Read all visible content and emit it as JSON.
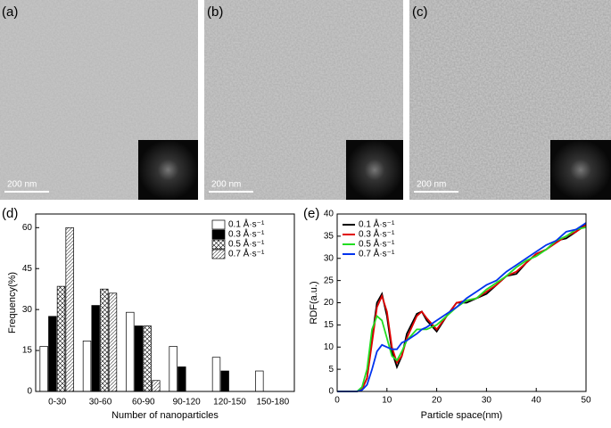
{
  "panels": [
    {
      "label": "(a)",
      "scale_bar": "200 nm"
    },
    {
      "label": "(b)",
      "scale_bar": "200 nm"
    },
    {
      "label": "(c)",
      "scale_bar": "200 nm"
    }
  ],
  "chart_data": [
    {
      "type": "bar",
      "panel_label": "(d)",
      "xlabel": "Number of nanoparticles",
      "ylabel": "Frequency(%)",
      "categories": [
        "0-30",
        "30-60",
        "60-90",
        "90-120",
        "120-150",
        "150-180"
      ],
      "series": [
        {
          "name": "0.1 Å·s⁻¹",
          "color": "#ffffff",
          "pattern": "none",
          "values": [
            16.5,
            18.5,
            29,
            16.5,
            12.5,
            7.5
          ]
        },
        {
          "name": "0.3 Å·s⁻¹",
          "color": "#000000",
          "pattern": "none",
          "values": [
            27.5,
            31.5,
            24,
            9,
            7.5,
            null
          ]
        },
        {
          "name": "0.5 Å·s⁻¹",
          "color": "#ffffff",
          "pattern": "crosshatch",
          "values": [
            38.5,
            37.5,
            24,
            null,
            null,
            null
          ]
        },
        {
          "name": "0.7 Å·s⁻¹",
          "color": "#ffffff",
          "pattern": "hatch",
          "values": [
            60,
            36,
            4,
            null,
            null,
            null
          ]
        }
      ],
      "ylim": [
        0,
        65
      ],
      "yticks": [
        0,
        15,
        30,
        45,
        60
      ],
      "legend": "top-right"
    },
    {
      "type": "line",
      "panel_label": "(e)",
      "xlabel": "Particle space(nm)",
      "ylabel": "RDF(a.u.)",
      "x": [
        0,
        2,
        4,
        5,
        6,
        7,
        8,
        9,
        10,
        11,
        12,
        13,
        14,
        16,
        17,
        18,
        20,
        22,
        24,
        26,
        28,
        30,
        32,
        34,
        36,
        38,
        40,
        42,
        44,
        46,
        48,
        50
      ],
      "series": [
        {
          "name": "0.1 Å·s⁻¹",
          "color": "#000000",
          "values": [
            0,
            0,
            0,
            0.5,
            3,
            12,
            20,
            22,
            17,
            9,
            5.5,
            8,
            13,
            17.5,
            18,
            16,
            13.5,
            17,
            20,
            20,
            21,
            22,
            24,
            26,
            26.5,
            29,
            31,
            32,
            34,
            34.5,
            36,
            38
          ]
        },
        {
          "name": "0.3 Å·s⁻¹",
          "color": "#e00000",
          "values": [
            0,
            0,
            0,
            0.5,
            3,
            11,
            19,
            21.5,
            18,
            10,
            6.5,
            8,
            12,
            17,
            18,
            16.5,
            14,
            17,
            20,
            20.5,
            21,
            22.5,
            24,
            26,
            27,
            29,
            31,
            32,
            33.5,
            35,
            36,
            37.5
          ]
        },
        {
          "name": "0.5 Å·s⁻¹",
          "color": "#22dd22",
          "values": [
            0,
            0,
            0,
            1,
            5,
            14,
            17,
            16,
            12,
            8,
            7,
            9,
            11.5,
            14,
            14,
            14,
            15,
            17,
            19,
            20.5,
            21,
            23,
            24.5,
            26,
            28,
            29.5,
            30.5,
            32,
            34,
            35,
            36.5,
            37
          ]
        },
        {
          "name": "0.7 Å·s⁻¹",
          "color": "#0033ee",
          "values": [
            0,
            0,
            0,
            0.3,
            1.5,
            5,
            9,
            10.5,
            10,
            9.5,
            9.5,
            11,
            11.5,
            13,
            14,
            14.5,
            16,
            17.5,
            19,
            21,
            22.5,
            24,
            25,
            27,
            28.5,
            30,
            31.5,
            33,
            34,
            36,
            36.5,
            38
          ]
        }
      ],
      "xlim": [
        0,
        50
      ],
      "xticks": [
        0,
        10,
        20,
        30,
        40,
        50
      ],
      "ylim": [
        0,
        40
      ],
      "yticks": [
        0,
        5,
        10,
        15,
        20,
        25,
        30,
        35,
        40
      ],
      "legend": "top-left"
    }
  ]
}
